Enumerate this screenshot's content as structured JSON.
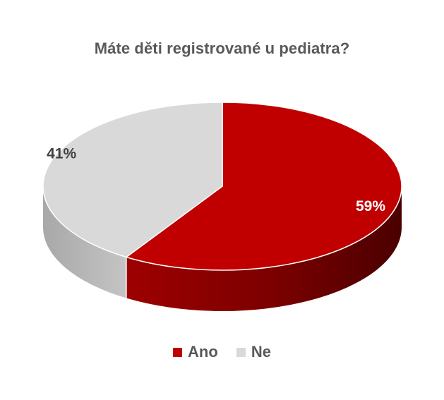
{
  "chart_data": {
    "type": "pie",
    "title": "Máte děti registrované u pediatra?",
    "categories": [
      "Ano",
      "Ne"
    ],
    "values": [
      59,
      41
    ],
    "labels": [
      "59%",
      "41%"
    ],
    "colors": [
      "#C00000",
      "#D9D9D9"
    ],
    "legend_position": "bottom",
    "style": "3d"
  }
}
